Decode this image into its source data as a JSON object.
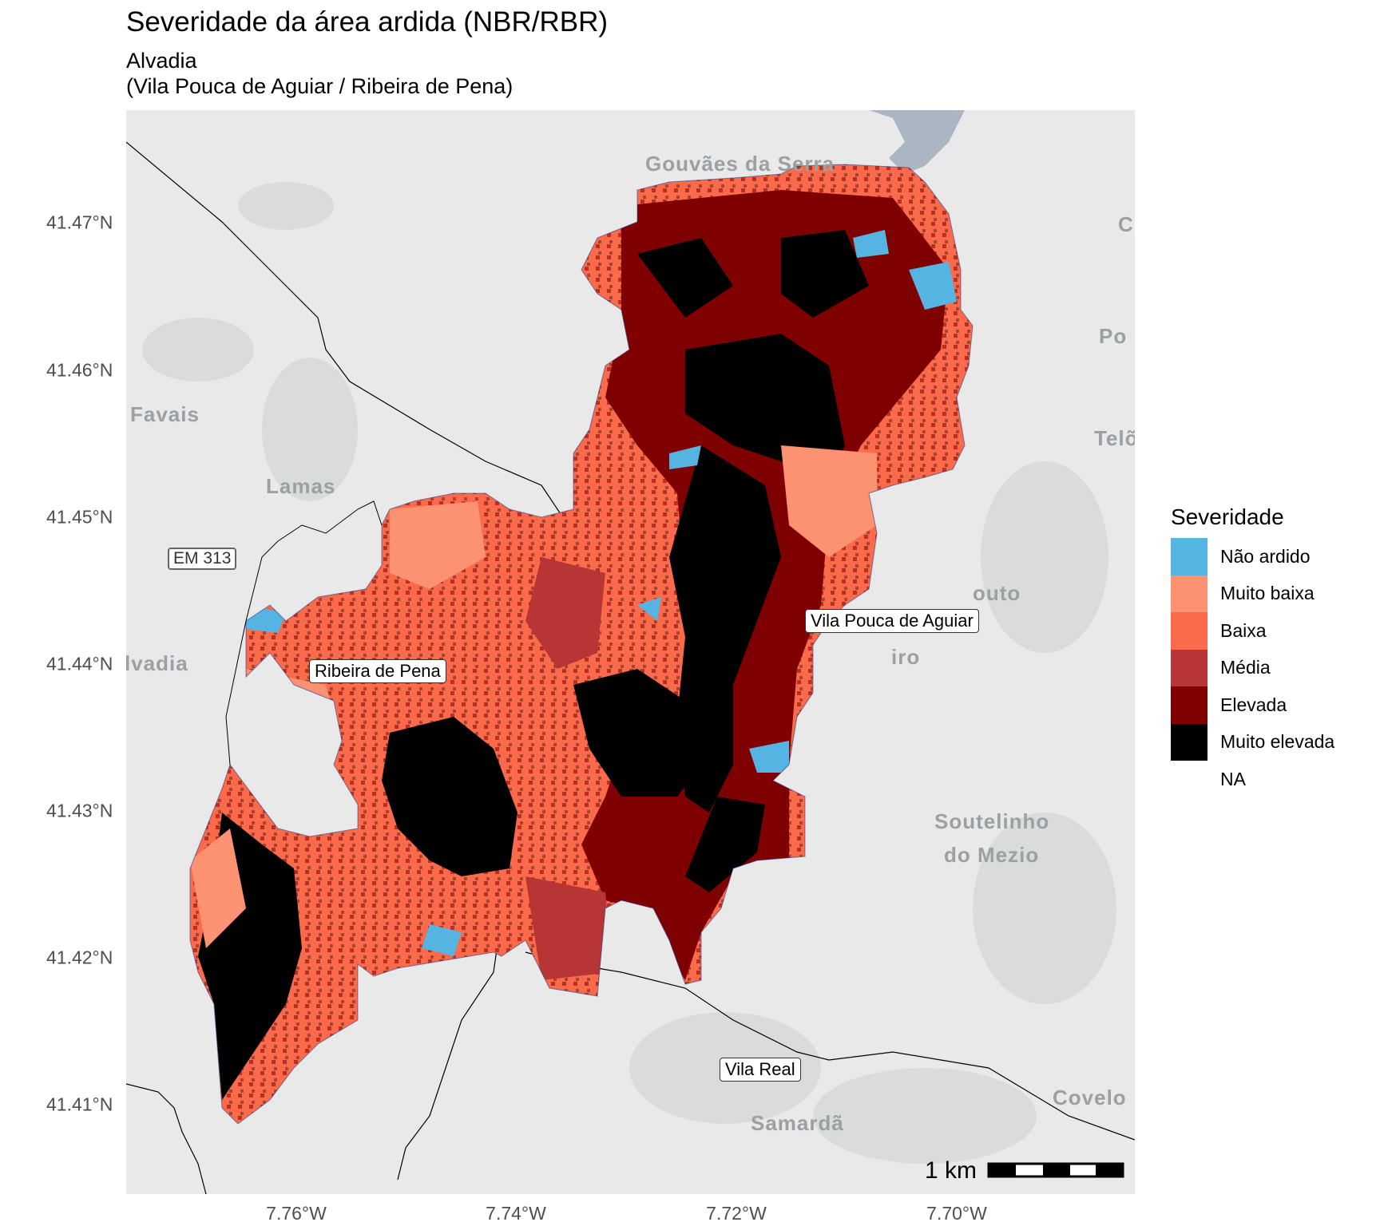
{
  "title": "Severidade da área ardida (NBR/RBR)",
  "subtitle_line1": "Alvadia",
  "subtitle_line2": "(Vila Pouca de Aguiar / Ribeira de Pena)",
  "y_axis_ticks": [
    "41.47°N",
    "41.46°N",
    "41.45°N",
    "41.44°N",
    "41.43°N",
    "41.42°N",
    "41.41°N"
  ],
  "x_axis_ticks": [
    "7.76°W",
    "7.74°W",
    "7.72°W",
    "7.70°W"
  ],
  "legend": {
    "title": "Severidade",
    "items": [
      {
        "label": "Não ardido",
        "color": "#56b4e2"
      },
      {
        "label": "Muito baixa",
        "color": "#fc9272"
      },
      {
        "label": "Baixa",
        "color": "#fb6a4a"
      },
      {
        "label": "Média",
        "color": "#b73535"
      },
      {
        "label": "Elevada",
        "color": "#7f0000"
      },
      {
        "label": "Muito elevada",
        "color": "#000000"
      },
      {
        "label": "NA",
        "color": ""
      }
    ]
  },
  "municipality_labels": {
    "ribeira": "Ribeira de Pena",
    "vila_pouca": "Vila Pouca de Aguiar",
    "vila_real": "Vila Real"
  },
  "basemap_labels": {
    "gouvaes": "Gouvães da Serra",
    "favais": "Favais",
    "lamas": "Lamas",
    "alvadia": "lvadia",
    "soutelinho1": "Soutelinho",
    "soutelinho2": "do Mezio",
    "samarda": "Samardã",
    "covelo": "Covelo",
    "pont": "Po",
    "telo": "Telõ",
    "outo": "outo",
    "iro": "iro",
    "c_edge": "C"
  },
  "road_shield": "EM 313",
  "scale_bar": {
    "label": "1 km"
  },
  "colors": {
    "basemap": "#e8e9e8",
    "water": "#aab7c2",
    "relief": "#d9dcd9"
  }
}
